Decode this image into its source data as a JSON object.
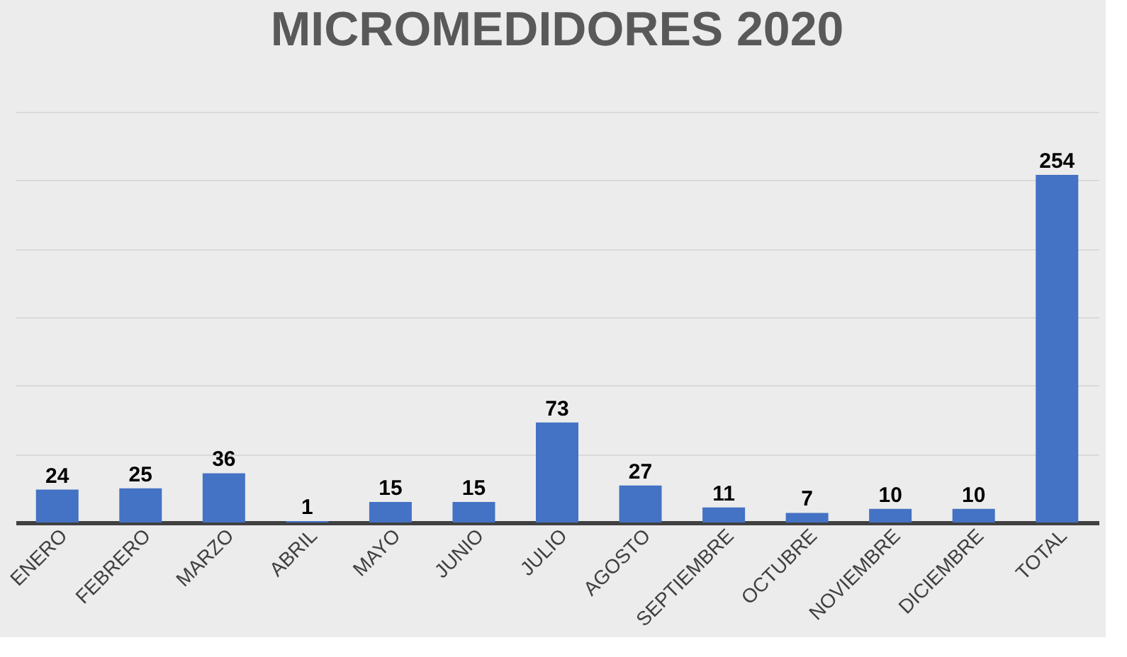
{
  "chart_data": {
    "type": "bar",
    "title": "MICROMEDIDORES 2020",
    "categories": [
      "ENERO",
      "FEBRERO",
      "MARZO",
      "ABRIL",
      "MAYO",
      "JUNIO",
      "JULIO",
      "AGOSTO",
      "SEPTIEMBRE",
      "OCTUBRE",
      "NOVIEMBRE",
      "DICIEMBRE",
      "TOTAL"
    ],
    "values": [
      24,
      25,
      36,
      1,
      15,
      15,
      73,
      27,
      11,
      7,
      10,
      10,
      254
    ],
    "color": "#4472c4",
    "ylim": [
      0,
      300
    ],
    "yticks": [
      {
        "value": 0,
        "label": null
      },
      {
        "value": 50,
        "label": null
      },
      {
        "value": 100,
        "label": null
      },
      {
        "value": 150,
        "label": null
      },
      {
        "value": 200,
        "label": null
      },
      {
        "value": 250,
        "label": null
      },
      {
        "value": 300,
        "label": null
      }
    ],
    "tick_labels": "x",
    "grid": "y",
    "data_labels": true
  }
}
